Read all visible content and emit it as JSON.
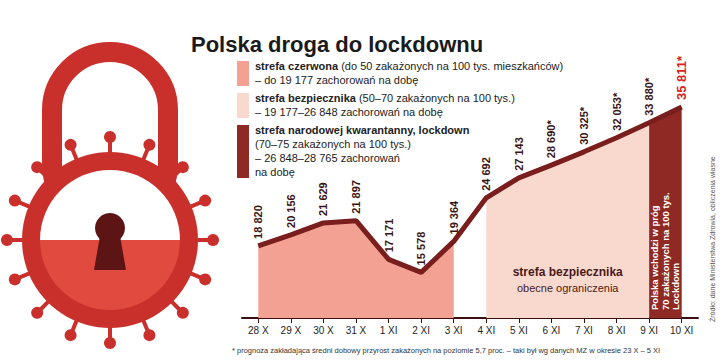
{
  "chart_data": {
    "type": "line",
    "title": "Polska droga do lockdownu",
    "categories": [
      "28 X",
      "29 X",
      "30 X",
      "31 X",
      "1 XI",
      "2 XI",
      "3 XI",
      "4 XI",
      "5 XI",
      "6 XI",
      "7 XI",
      "8 XI",
      "9 XI",
      "10 XI"
    ],
    "values": [
      18820,
      20156,
      21629,
      21897,
      17171,
      15578,
      19364,
      24692,
      27143,
      28690,
      30325,
      32053,
      33880,
      35811
    ],
    "value_labels": [
      "18 820",
      "20 156",
      "21 629",
      "21 897",
      "17 171",
      "15 578",
      "19 364",
      "24 692",
      "27 143",
      "28 690*",
      "30 325*",
      "32 053*",
      "33 880*",
      "35 811*"
    ],
    "color": "#7a1d1d",
    "data_labels": true,
    "tick_labels": "x",
    "ylim": [
      10000,
      44000
    ],
    "zones": [
      {
        "from": "28 X",
        "to": "3 XI",
        "color": "#f3a193",
        "legend_lines": [
          {
            "bold": "strefa czerwona",
            "text": "(do 50 zakażonych na 100 tys. mieszkańców)"
          },
          {
            "text": "– do 19 177 zachorowań na dobę"
          }
        ]
      },
      {
        "from": "4 XI",
        "to": "9 XI",
        "color": "#f9d9cd",
        "legend_lines": [
          {
            "bold": "strefa bezpiecznika",
            "text": "(50–70 zakażonych na 100 tys.)"
          },
          {
            "text": "– 19 177–26 848 zachorowań na dobę"
          }
        ],
        "label_lines": [
          "strefa bezpiecznika",
          "obecne ograniczenia"
        ]
      },
      {
        "from": "9 XI",
        "to": "10 XI",
        "color": "#8e2a23",
        "legend_lines": [
          {
            "bold": "strefa narodowej kwarantanny, lockdown"
          },
          {
            "text": "(70–75 zakażonych na 100 tys.)"
          },
          {
            "text": "– 26 848–28 765 zachorowań"
          },
          {
            "text": "na dobę"
          }
        ],
        "label_lines": [
          "Polska wchodzi w próg",
          "70 zakażonych na 100 tys.",
          "Lockdown"
        ]
      }
    ],
    "footnote": "* prognoza zakładająca średni dobowy przyrost zakażonych na poziomie 5,7 proc. – taki był wg danych MZ w okresie 23 X – 5 XI",
    "source": "Źródło: dane Ministerstwa Zdrowia, obliczenia własne"
  }
}
